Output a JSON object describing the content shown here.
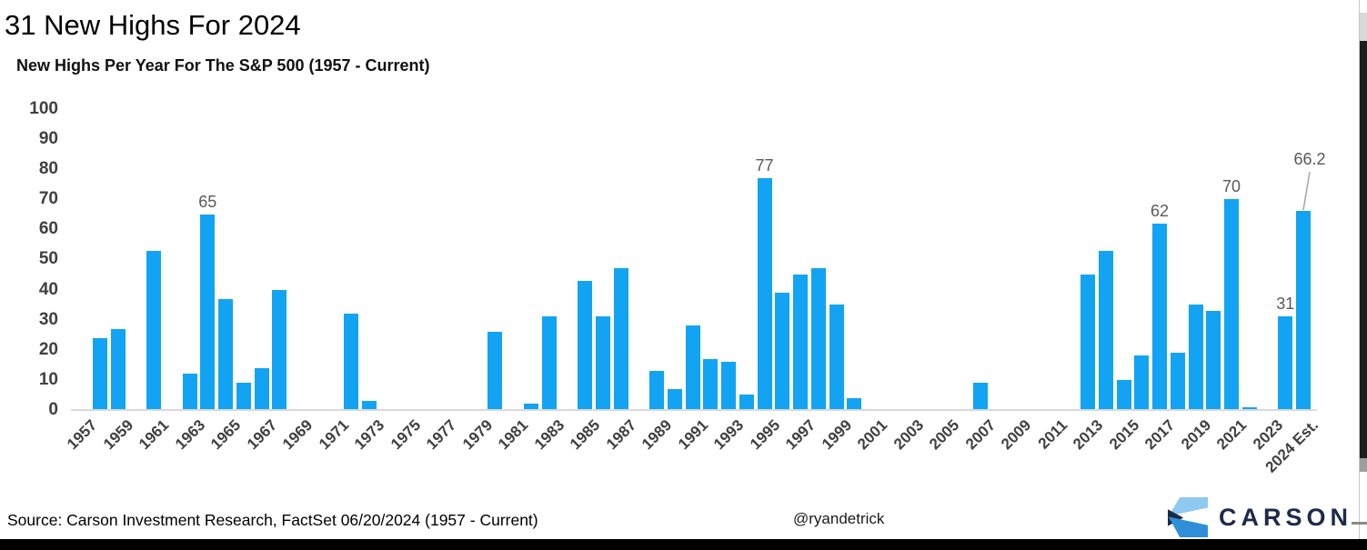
{
  "title": "31 New Highs For 2024",
  "subtitle": "New Highs Per Year For The S&P 500 (1957 - Current)",
  "footer": {
    "source": "Source: Carson Investment Research, FactSet 06/20/2024 (1957 - Current)",
    "handle": "@ryandetrick",
    "logo_text": "CARSON"
  },
  "colors": {
    "bar": "#12A4F2",
    "data_label": "#595959",
    "axis_label": "#404040",
    "axis_line": "#D9D9D9",
    "leader_line": "#A6A6A6",
    "logo_navy": "#1C2B4A",
    "logo_light_blue": "#8FC9F0",
    "logo_mid_blue": "#2E8FD8"
  },
  "chart_data": {
    "type": "bar",
    "title": "31 New Highs For 2024",
    "subtitle": "New Highs Per Year For The S&P 500 (1957 - Current)",
    "xlabel": "",
    "ylabel": "",
    "ylim": [
      0,
      100
    ],
    "y_ticks": [
      0,
      10,
      20,
      30,
      40,
      50,
      60,
      70,
      80,
      90,
      100
    ],
    "grid": false,
    "legend": false,
    "categories": [
      "1957",
      "1958",
      "1959",
      "1960",
      "1961",
      "1962",
      "1963",
      "1964",
      "1965",
      "1966",
      "1967",
      "1968",
      "1969",
      "1970",
      "1971",
      "1972",
      "1973",
      "1974",
      "1975",
      "1976",
      "1977",
      "1978",
      "1979",
      "1980",
      "1981",
      "1982",
      "1983",
      "1984",
      "1985",
      "1986",
      "1987",
      "1988",
      "1989",
      "1990",
      "1991",
      "1992",
      "1993",
      "1994",
      "1995",
      "1996",
      "1997",
      "1998",
      "1999",
      "2000",
      "2001",
      "2002",
      "2003",
      "2004",
      "2005",
      "2006",
      "2007",
      "2008",
      "2009",
      "2010",
      "2011",
      "2012",
      "2013",
      "2014",
      "2015",
      "2016",
      "2017",
      "2018",
      "2019",
      "2020",
      "2021",
      "2022",
      "2023",
      "2024",
      "2024 Est."
    ],
    "values": [
      0,
      24,
      27,
      0,
      53,
      0,
      12,
      65,
      37,
      9,
      14,
      40,
      0,
      0,
      0,
      32,
      3,
      0,
      0,
      0,
      0,
      0,
      0,
      26,
      0,
      2,
      31,
      0,
      43,
      31,
      47,
      0,
      13,
      7,
      28,
      17,
      16,
      5,
      77,
      39,
      45,
      47,
      35,
      4,
      0,
      0,
      0,
      0,
      0,
      0,
      9,
      0,
      0,
      0,
      0,
      0,
      45,
      53,
      10,
      18,
      62,
      19,
      35,
      33,
      70,
      1,
      0,
      31,
      66.2
    ],
    "bar_labels": {
      "1964": "65",
      "1995": "77",
      "2017": "62",
      "2021": "70",
      "2024": "31",
      "2024 Est.": "66.2"
    },
    "x_tick_labels": [
      "1957",
      "1959",
      "1961",
      "1963",
      "1965",
      "1967",
      "1969",
      "1971",
      "1973",
      "1975",
      "1977",
      "1979",
      "1981",
      "1983",
      "1985",
      "1987",
      "1989",
      "1991",
      "1993",
      "1995",
      "1997",
      "1999",
      "2001",
      "2003",
      "2005",
      "2007",
      "2009",
      "2011",
      "2013",
      "2015",
      "2017",
      "2019",
      "2021",
      "2023",
      "2024 Est."
    ]
  }
}
